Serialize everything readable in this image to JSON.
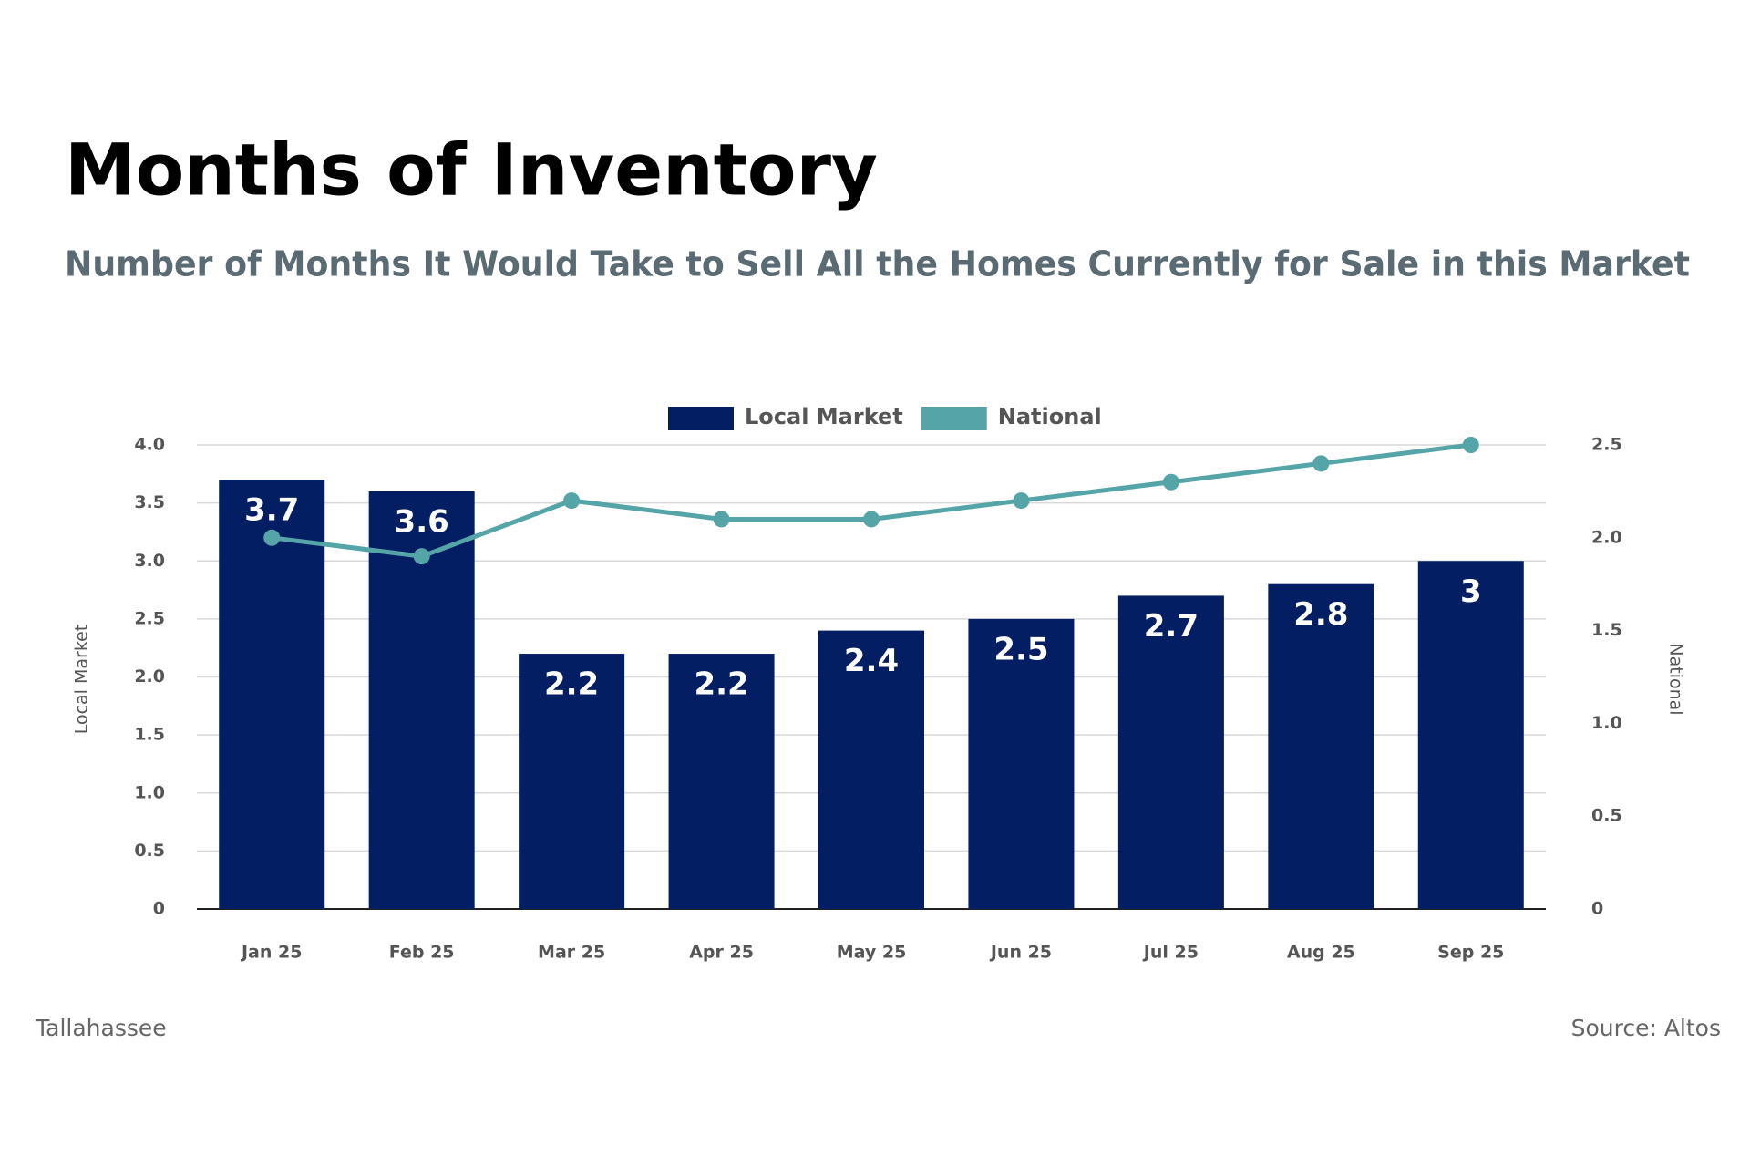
{
  "chart_data": {
    "type": "bar_line",
    "title": "Months of Inventory",
    "subtitle": "Number of Months It Would Take to Sell All the Homes Currently for Sale in this Market",
    "categories": [
      "Jan 25",
      "Feb 25",
      "Mar 25",
      "Apr 25",
      "May 25",
      "Jun 25",
      "Jul 25",
      "Aug 25",
      "Sep 25"
    ],
    "series": [
      {
        "name": "Local Market",
        "color": "#041e63",
        "type": "bar",
        "values": [
          3.7,
          3.6,
          2.2,
          2.2,
          2.4,
          2.5,
          2.7,
          2.8,
          3.0
        ],
        "value_labels": [
          "3.7",
          "3.6",
          "2.2",
          "2.2",
          "2.4",
          "2.5",
          "2.7",
          "2.8",
          "3"
        ]
      },
      {
        "name": "National",
        "color": "#55a5a8",
        "type": "line",
        "axis": "y2",
        "values": [
          2.0,
          1.9,
          2.2,
          2.1,
          2.1,
          2.2,
          2.3,
          2.4,
          2.5
        ]
      }
    ],
    "ylabel": "Local Market",
    "y2label": "National",
    "ylim": [
      0,
      4.0
    ],
    "yticks": [
      0,
      0.5,
      {
        "value": 1,
        "label": "1.0"
      },
      1.5,
      {
        "value": 2,
        "label": "2.0"
      },
      2.5,
      {
        "value": 3,
        "label": "3.0"
      },
      3.5,
      {
        "value": 4,
        "label": "4.0"
      }
    ],
    "y2lim": [
      0,
      2.5
    ],
    "y2ticks": [
      0,
      0.5,
      {
        "value": 1,
        "label": "1.0"
      },
      1.5,
      {
        "value": 2,
        "label": "2.0"
      },
      2.5
    ],
    "grid": true,
    "legend": "top",
    "footer_left": "Tallahassee",
    "footer_right": "Source: Altos"
  }
}
